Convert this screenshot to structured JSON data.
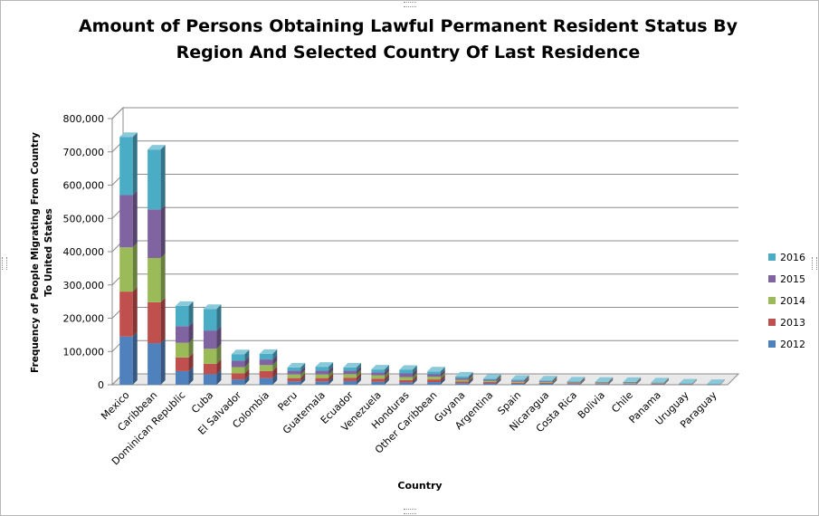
{
  "chart_data": {
    "type": "bar",
    "stacked": true,
    "style": "3d-column",
    "title": "Amount of Persons Obtaining Lawful Permanent Resident Status By Region And Selected Country Of Last Residence",
    "title_lines": [
      "Amount of Persons Obtaining Lawful Permanent Resident Status By",
      "Region And Selected Country Of Last Residence"
    ],
    "xlabel": "Country",
    "ylabel_lines": [
      "Frequency of People Migrating  From Country",
      "To United States"
    ],
    "ylim": [
      0,
      800000
    ],
    "yticks": [
      0,
      100000,
      200000,
      300000,
      400000,
      500000,
      600000,
      700000,
      800000
    ],
    "ytick_labels": [
      "0",
      "100,000",
      "200,000",
      "300,000",
      "400,000",
      "500,000",
      "600,000",
      "700,000",
      "800,000"
    ],
    "grid": true,
    "legend_position": "right",
    "categories": [
      "Mexico",
      "Caribbean",
      "Dominican Republic",
      "Cuba",
      "El Salvador",
      "Colombia",
      "Peru",
      "Guatemala",
      "Ecuador",
      "Venezuela",
      "Honduras",
      "Other Caribbean",
      "Guyana",
      "Argentina",
      "Spain",
      "Nicaragua",
      "Costa Rica",
      "Bolivia",
      "Chile",
      "Panama",
      "Uruguay",
      "Paraguay"
    ],
    "series": [
      {
        "name": "2012",
        "color": "#4f81bd",
        "values": [
          145000,
          125000,
          41000,
          32000,
          16000,
          20000,
          10000,
          10000,
          11000,
          9000,
          7000,
          8000,
          5000,
          4000,
          3000,
          3000,
          2000,
          2000,
          1800,
          1500,
          800,
          500
        ]
      },
      {
        "name": "2013",
        "color": "#c0504d",
        "values": [
          135000,
          123000,
          41000,
          31000,
          18000,
          21000,
          10000,
          10000,
          10000,
          9000,
          7000,
          8000,
          5000,
          4000,
          3000,
          2500,
          2000,
          1800,
          1700,
          1500,
          800,
          500
        ]
      },
      {
        "name": "2014",
        "color": "#9bbb59",
        "values": [
          133000,
          133000,
          44000,
          45000,
          19000,
          18000,
          11000,
          11000,
          11000,
          10000,
          9000,
          8000,
          5000,
          3500,
          3000,
          2500,
          2000,
          1800,
          1700,
          1400,
          800,
          500
        ]
      },
      {
        "name": "2015",
        "color": "#8064a2",
        "values": [
          157000,
          146000,
          50000,
          55000,
          19000,
          17000,
          11000,
          11000,
          10000,
          9000,
          11000,
          8000,
          5000,
          3500,
          3000,
          2500,
          2000,
          1700,
          1700,
          1400,
          700,
          500
        ]
      },
      {
        "name": "2016",
        "color": "#4bacc6",
        "values": [
          175000,
          180000,
          61000,
          65000,
          20000,
          17000,
          10000,
          12000,
          10000,
          9000,
          11000,
          8000,
          5000,
          3000,
          3000,
          2500,
          2000,
          1700,
          1600,
          1200,
          700,
          500
        ]
      }
    ]
  }
}
